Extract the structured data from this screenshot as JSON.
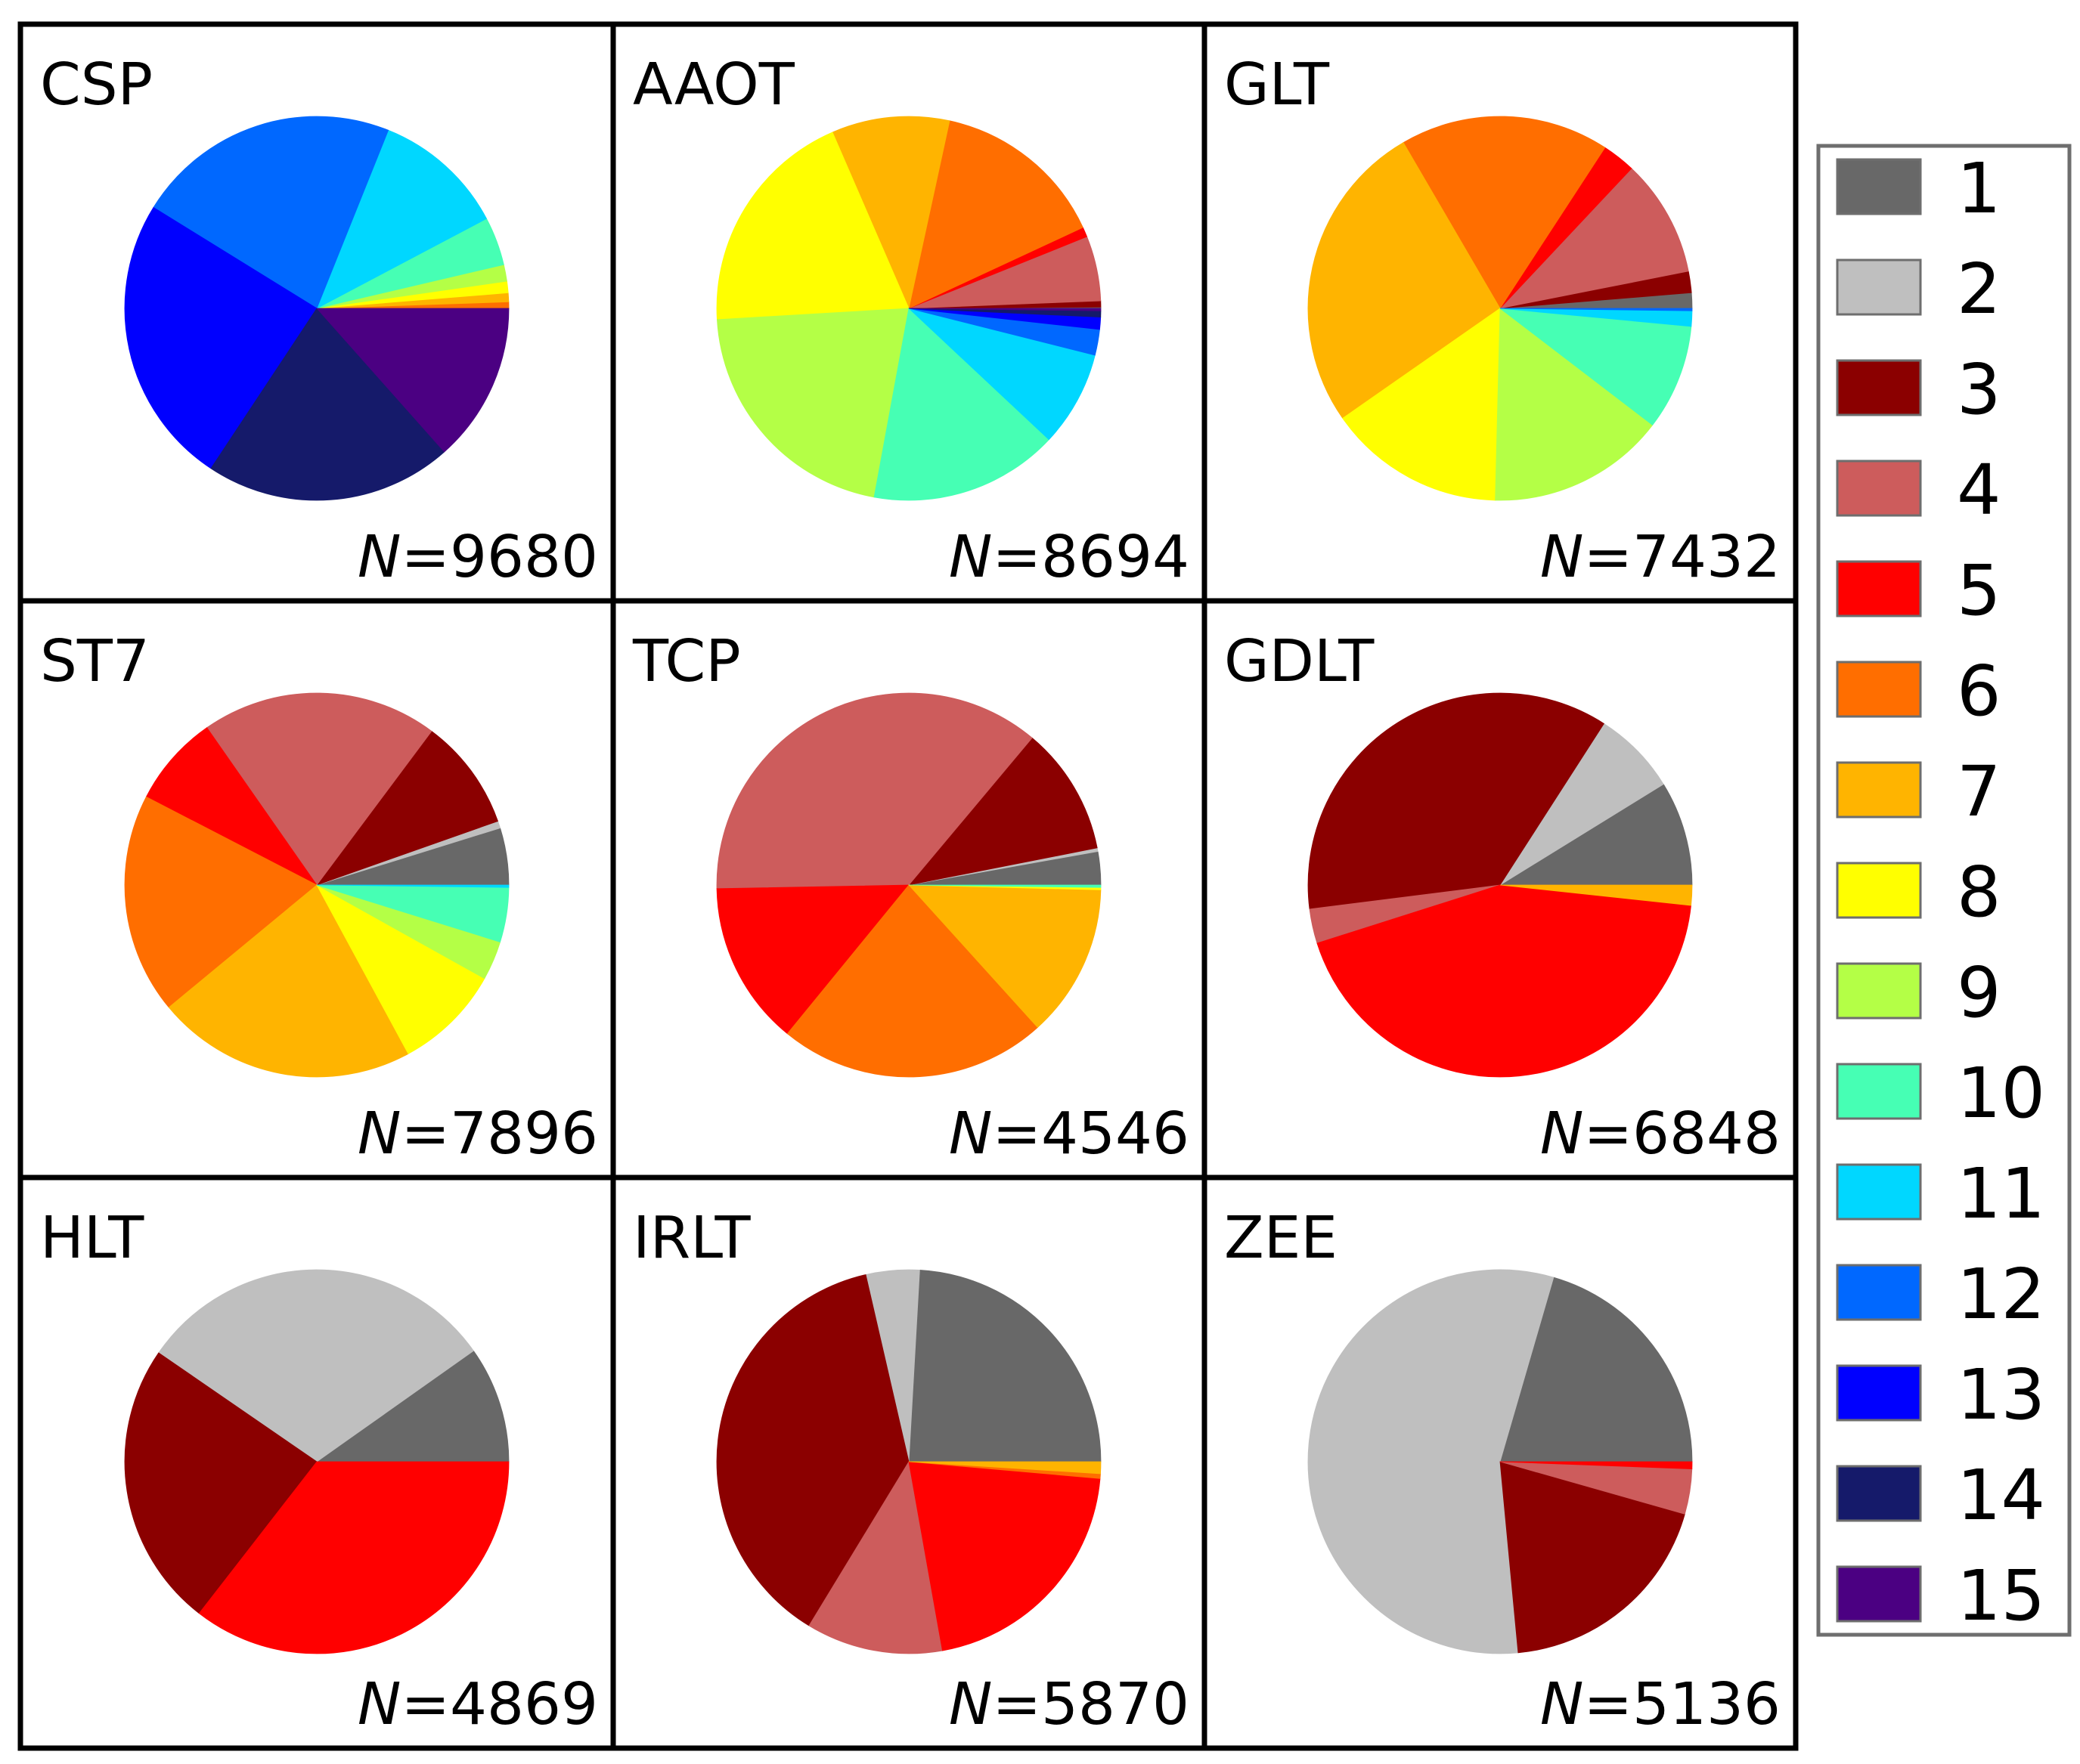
{
  "colors": {
    "1": "#686868",
    "2": "#bfbfbf",
    "3": "#8b0000",
    "4": "#cd5c5c",
    "5": "#ff0000",
    "6": "#ff6e00",
    "7": "#ffb400",
    "8": "#ffff00",
    "9": "#b4ff46",
    "10": "#46ffb4",
    "11": "#00d7ff",
    "12": "#0068ff",
    "13": "#0000ff",
    "14": "#151a6a",
    "15": "#4b0082"
  },
  "chart_data": {
    "type": "pie",
    "legend": {
      "position": "right",
      "labels": [
        "1",
        "2",
        "3",
        "4",
        "5",
        "6",
        "7",
        "8",
        "9",
        "10",
        "11",
        "12",
        "13",
        "14",
        "15"
      ]
    },
    "panels": [
      {
        "title": "CSP",
        "n_prefix": "N",
        "n_value": "=9680",
        "slices": [
          {
            "cat": "6",
            "value": 0.5
          },
          {
            "cat": "7",
            "value": 0.7
          },
          {
            "cat": "8",
            "value": 0.9
          },
          {
            "cat": "9",
            "value": 1.3
          },
          {
            "cat": "10",
            "value": 3.8
          },
          {
            "cat": "11",
            "value": 10.4
          },
          {
            "cat": "12",
            "value": 20.7
          },
          {
            "cat": "13",
            "value": 22.8
          },
          {
            "cat": "14",
            "value": 19.4
          },
          {
            "cat": "15",
            "value": 12.5
          }
        ]
      },
      {
        "title": "AAOT",
        "n_prefix": "N",
        "n_value": "=8694",
        "slices": [
          {
            "cat": "1",
            "value": 0.1
          },
          {
            "cat": "3",
            "value": 0.5
          },
          {
            "cat": "4",
            "value": 5.3
          },
          {
            "cat": "5",
            "value": 0.8
          },
          {
            "cat": "6",
            "value": 14.2
          },
          {
            "cat": "7",
            "value": 9.6
          },
          {
            "cat": "8",
            "value": 18.8
          },
          {
            "cat": "9",
            "value": 20.5
          },
          {
            "cat": "10",
            "value": 15.4
          },
          {
            "cat": "11",
            "value": 7.8
          },
          {
            "cat": "12",
            "value": 2.1
          },
          {
            "cat": "13",
            "value": 1.0
          },
          {
            "cat": "14",
            "value": 0.5
          },
          {
            "cat": "15",
            "value": 0.2
          }
        ]
      },
      {
        "title": "GLT",
        "n_prefix": "N",
        "n_value": "=7432",
        "slices": [
          {
            "cat": "1",
            "value": 1.3
          },
          {
            "cat": "3",
            "value": 1.8
          },
          {
            "cat": "4",
            "value": 9.9
          },
          {
            "cat": "5",
            "value": 2.8
          },
          {
            "cat": "6",
            "value": 17.6
          },
          {
            "cat": "7",
            "value": 26.3
          },
          {
            "cat": "8",
            "value": 14.9
          },
          {
            "cat": "9",
            "value": 15.0
          },
          {
            "cat": "10",
            "value": 8.9
          },
          {
            "cat": "11",
            "value": 1.3
          },
          {
            "cat": "12",
            "value": 0.2
          }
        ]
      },
      {
        "title": "ST7",
        "n_prefix": "N",
        "n_value": "=7896",
        "slices": [
          {
            "cat": "1",
            "value": 4.8
          },
          {
            "cat": "2",
            "value": 0.6
          },
          {
            "cat": "3",
            "value": 9.4
          },
          {
            "cat": "4",
            "value": 19.9
          },
          {
            "cat": "5",
            "value": 7.7
          },
          {
            "cat": "6",
            "value": 18.6
          },
          {
            "cat": "7",
            "value": 21.9
          },
          {
            "cat": "8",
            "value": 9.0
          },
          {
            "cat": "9",
            "value": 3.3
          },
          {
            "cat": "10",
            "value": 4.6
          },
          {
            "cat": "11",
            "value": 0.2
          }
        ]
      },
      {
        "title": "TCP",
        "n_prefix": "N",
        "n_value": "=4546",
        "slices": [
          {
            "cat": "1",
            "value": 2.8
          },
          {
            "cat": "2",
            "value": 0.3
          },
          {
            "cat": "3",
            "value": 10.8
          },
          {
            "cat": "4",
            "value": 36.4
          },
          {
            "cat": "5",
            "value": 13.8
          },
          {
            "cat": "6",
            "value": 22.6
          },
          {
            "cat": "7",
            "value": 12.9
          },
          {
            "cat": "8",
            "value": 0.2
          },
          {
            "cat": "10",
            "value": 0.2
          }
        ]
      },
      {
        "title": "GDLT",
        "n_prefix": "N",
        "n_value": "=6848",
        "slices": [
          {
            "cat": "1",
            "value": 8.8
          },
          {
            "cat": "2",
            "value": 7.1
          },
          {
            "cat": "3",
            "value": 36.1
          },
          {
            "cat": "4",
            "value": 2.9
          },
          {
            "cat": "5",
            "value": 43.4
          },
          {
            "cat": "7",
            "value": 1.7
          }
        ]
      },
      {
        "title": "HLT",
        "n_prefix": "N",
        "n_value": "=4869",
        "slices": [
          {
            "cat": "1",
            "value": 9.8
          },
          {
            "cat": "2",
            "value": 30.6
          },
          {
            "cat": "3",
            "value": 24.1
          },
          {
            "cat": "5",
            "value": 35.5
          }
        ]
      },
      {
        "title": "IRLT",
        "n_prefix": "N",
        "n_value": "=5870",
        "slices": [
          {
            "cat": "1",
            "value": 24.1
          },
          {
            "cat": "2",
            "value": 4.5
          },
          {
            "cat": "3",
            "value": 37.7
          },
          {
            "cat": "4",
            "value": 11.5
          },
          {
            "cat": "5",
            "value": 20.8
          },
          {
            "cat": "6",
            "value": 0.4
          },
          {
            "cat": "7",
            "value": 1.0
          }
        ]
      },
      {
        "title": "ZEE",
        "n_prefix": "N",
        "n_value": "=5136",
        "slices": [
          {
            "cat": "1",
            "value": 20.5
          },
          {
            "cat": "2",
            "value": 56.0
          },
          {
            "cat": "3",
            "value": 19.1
          },
          {
            "cat": "4",
            "value": 3.8
          },
          {
            "cat": "5",
            "value": 0.6
          }
        ]
      }
    ]
  }
}
